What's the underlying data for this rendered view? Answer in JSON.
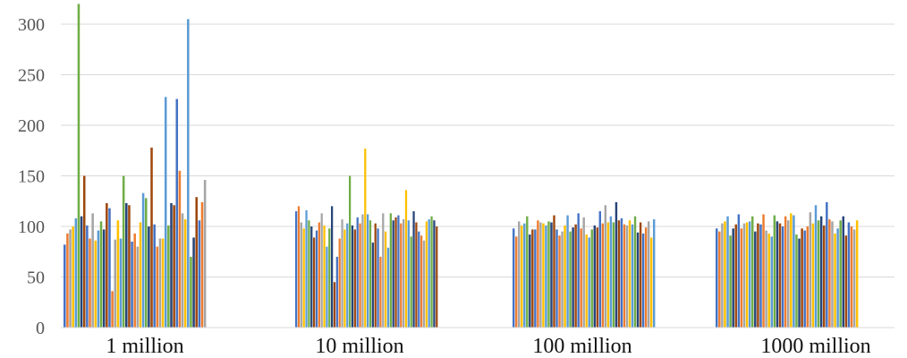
{
  "chart_data": {
    "type": "bar",
    "title": "",
    "xlabel": "",
    "ylabel": "",
    "ylim": [
      0,
      320
    ],
    "yticks": [
      0,
      50,
      100,
      150,
      200,
      250,
      300
    ],
    "grid": true,
    "legend": "none",
    "categories": [
      "1 million",
      "10 million",
      "100 million",
      "1000 million"
    ],
    "series_colors": [
      "#4472c4",
      "#ed7d31",
      "#a5a5a5",
      "#ffc000",
      "#5b9bd5",
      "#70ad47",
      "#264478",
      "#9e480e"
    ],
    "groups": [
      {
        "category": "1 million",
        "values": [
          82,
          93,
          97,
          100,
          108,
          320,
          110,
          150,
          101,
          88,
          113,
          86,
          96,
          105,
          97,
          123,
          118,
          36,
          87,
          106,
          88,
          150,
          123,
          121,
          85,
          93,
          80,
          104,
          133,
          128,
          100,
          178,
          102,
          80,
          88,
          88,
          228,
          101,
          123,
          121,
          226,
          155,
          113,
          107,
          305,
          70,
          89,
          129,
          106,
          124,
          146
        ]
      },
      {
        "category": "10 million",
        "values": [
          115,
          120,
          104,
          98,
          116,
          106,
          100,
          89,
          96,
          104,
          113,
          101,
          80,
          98,
          120,
          45,
          70,
          88,
          107,
          97,
          103,
          150,
          101,
          97,
          109,
          103,
          112,
          177,
          112,
          106,
          84,
          103,
          98,
          70,
          113,
          95,
          79,
          113,
          106,
          109,
          111,
          103,
          107,
          136,
          106,
          90,
          115,
          104,
          95,
          91,
          86,
          105,
          107,
          110,
          106,
          100
        ]
      },
      {
        "category": "100 million",
        "values": [
          98,
          90,
          105,
          101,
          103,
          110,
          92,
          97,
          97,
          106,
          104,
          103,
          101,
          105,
          104,
          111,
          97,
          91,
          95,
          101,
          111,
          95,
          99,
          102,
          113,
          98,
          109,
          92,
          89,
          97,
          101,
          99,
          115,
          103,
          121,
          104,
          110,
          104,
          124,
          106,
          108,
          102,
          101,
          106,
          102,
          110,
          94,
          104,
          93,
          99,
          105,
          89,
          107
        ]
      },
      {
        "category": "1000 million",
        "values": [
          98,
          95,
          103,
          105,
          110,
          91,
          98,
          102,
          112,
          98,
          103,
          104,
          105,
          110,
          95,
          103,
          102,
          112,
          96,
          93,
          90,
          111,
          105,
          103,
          100,
          110,
          106,
          113,
          111,
          92,
          88,
          98,
          96,
          100,
          114,
          103,
          121,
          106,
          110,
          101,
          124,
          107,
          105,
          93,
          98,
          106,
          110,
          91,
          104,
          100,
          97,
          106
        ]
      }
    ]
  }
}
